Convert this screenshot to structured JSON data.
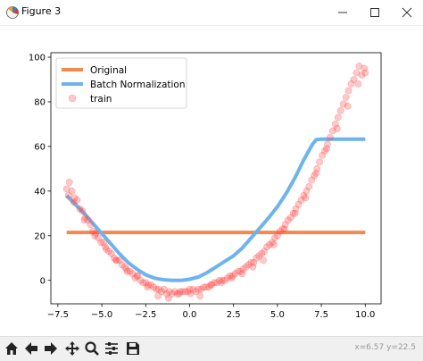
{
  "window": {
    "title": "Figure 3"
  },
  "toolbar": {
    "coords_text": "x=6.57  y=22.5",
    "tools": [
      "home-icon",
      "back-icon",
      "forward-icon",
      "pan-icon",
      "zoom-icon",
      "configure-subplots-icon",
      "save-icon"
    ]
  },
  "chart_data": {
    "type": "line",
    "title": "",
    "xlabel": "",
    "ylabel": "",
    "xlim": [
      -7.9,
      10.9
    ],
    "ylim": [
      -10.5,
      102
    ],
    "xticks": [
      -7.5,
      -5.0,
      -2.5,
      0.0,
      2.5,
      5.0,
      7.5,
      10.0
    ],
    "xtick_labels": [
      "−7.5",
      "−5.0",
      "−2.5",
      "0.0",
      "2.5",
      "5.0",
      "7.5",
      "10.0"
    ],
    "yticks": [
      0,
      20,
      40,
      60,
      80,
      100
    ],
    "ytick_labels": [
      "0",
      "20",
      "40",
      "60",
      "80",
      "100"
    ],
    "grid": false,
    "legend_position": "top-left",
    "series": [
      {
        "name": "Original",
        "kind": "line",
        "color": "#f4894f",
        "x": [
          -7,
          10
        ],
        "y": [
          21.5,
          21.5
        ]
      },
      {
        "name": "Batch Normalization",
        "kind": "line",
        "color": "#6db4ee",
        "x": [
          -7,
          -6.5,
          -6,
          -5.5,
          -5,
          -4.5,
          -4,
          -3.5,
          -3,
          -2.5,
          -2,
          -1.5,
          -1,
          -0.5,
          0,
          0.5,
          1,
          1.5,
          2,
          2.5,
          3,
          3.5,
          4,
          4.5,
          5,
          5.5,
          6,
          6.5,
          7,
          7.2,
          7.5,
          8,
          9,
          10
        ],
        "y": [
          38,
          34,
          30,
          25.5,
          21,
          16.5,
          12,
          8,
          5,
          2.5,
          1,
          0.3,
          0,
          0,
          0.5,
          1.5,
          3.5,
          6,
          8.5,
          11,
          14.5,
          19,
          23.5,
          28,
          33,
          39,
          46,
          54,
          61,
          63,
          63.3,
          63.3,
          63.3,
          63.3
        ]
      },
      {
        "name": "train",
        "kind": "scatter",
        "color": "#ff4d4d",
        "alpha": 0.3,
        "x": [
          -7,
          -6.85,
          -6.7,
          -6.55,
          -6.4,
          -6.25,
          -6.1,
          -5.95,
          -5.8,
          -5.65,
          -5.5,
          -5.35,
          -5.2,
          -5.05,
          -4.9,
          -4.75,
          -4.6,
          -4.45,
          -4.3,
          -4.15,
          -4.0,
          -3.85,
          -3.7,
          -3.55,
          -3.4,
          -3.25,
          -3.1,
          -2.95,
          -2.8,
          -2.65,
          -2.5,
          -2.35,
          -2.2,
          -2.05,
          -1.9,
          -1.75,
          -1.6,
          -1.45,
          -1.3,
          -1.15,
          -1.0,
          -0.85,
          -0.7,
          -0.55,
          -0.4,
          -0.25,
          -0.1,
          0.05,
          0.2,
          0.35,
          0.5,
          0.65,
          0.8,
          0.95,
          1.1,
          1.25,
          1.4,
          1.55,
          1.7,
          1.85,
          2.0,
          2.15,
          2.3,
          2.45,
          2.6,
          2.75,
          2.9,
          3.05,
          3.2,
          3.35,
          3.5,
          3.65,
          3.8,
          3.95,
          4.1,
          4.25,
          4.4,
          4.55,
          4.7,
          4.85,
          5.0,
          5.15,
          5.3,
          5.45,
          5.6,
          5.75,
          5.9,
          6.05,
          6.2,
          6.35,
          6.5,
          6.65,
          6.8,
          6.95,
          7.1,
          7.25,
          7.4,
          7.55,
          7.7,
          7.85,
          8.0,
          8.15,
          8.3,
          8.45,
          8.6,
          8.75,
          8.9,
          9.05,
          9.2,
          9.35,
          9.5,
          9.65,
          9.8,
          9.95,
          -6.9,
          -6.6,
          -6.0,
          -5.4,
          -4.8,
          -4.2,
          -3.6,
          -3.0,
          -2.4,
          -1.8,
          -1.2,
          -0.6,
          0.0,
          0.6,
          1.2,
          1.8,
          2.4,
          3.0,
          3.6,
          4.2,
          4.8,
          5.4,
          6.0,
          6.6,
          7.2,
          7.8,
          8.4,
          9.0,
          9.6,
          10.0
        ],
        "y": [
          41,
          44,
          40,
          37,
          36,
          32,
          31,
          28,
          27,
          25,
          22,
          21,
          19,
          17,
          17,
          14,
          13,
          12,
          10,
          9,
          9,
          7,
          6,
          4,
          4,
          3,
          1,
          2,
          0,
          -1,
          -1,
          -2,
          -2,
          -3,
          -4,
          -4,
          -5,
          -4,
          -6,
          -5,
          -6,
          -5,
          -6,
          -5,
          -5,
          -5,
          -5,
          -6,
          -4,
          -5,
          -4,
          -4,
          -3,
          -3,
          -3,
          -2,
          -1,
          -1,
          0,
          0,
          0,
          1,
          2,
          2,
          3,
          4,
          4,
          5,
          6,
          7,
          8,
          8,
          10,
          11,
          12,
          13,
          15,
          16,
          17,
          19,
          20,
          22,
          23,
          25,
          27,
          28,
          30,
          32,
          34,
          36,
          38,
          40,
          42,
          45,
          47,
          50,
          53,
          56,
          58,
          61,
          64,
          67,
          70,
          73,
          76,
          79,
          82,
          85,
          88,
          90,
          93,
          96,
          92,
          95,
          38,
          35,
          27,
          20,
          15,
          9,
          5,
          2,
          -3,
          -7,
          -8,
          -6,
          -4,
          -7,
          -2,
          -1,
          1,
          3,
          6,
          9,
          16,
          23,
          30,
          37,
          48,
          59,
          68,
          78,
          88,
          93
        ]
      }
    ]
  }
}
